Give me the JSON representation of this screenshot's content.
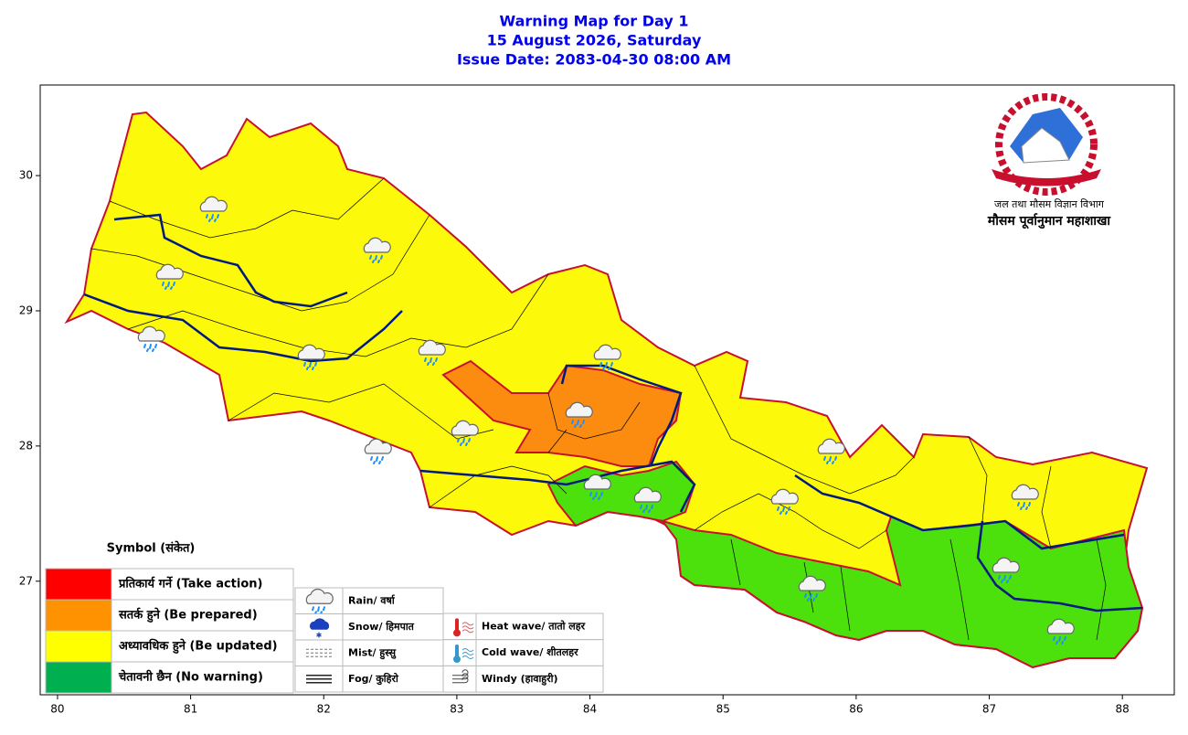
{
  "title": [
    "Warning Map for Day 1",
    "15 August 2026, Saturday",
    "Issue Date: 2083-04-30 08:00 AM"
  ],
  "map": {
    "xlim": [
      79.87,
      88.39
    ],
    "ylim": [
      26.16,
      30.67
    ],
    "xticks": [
      80,
      81,
      82,
      83,
      84,
      85,
      86,
      87,
      88
    ],
    "yticks": [
      27,
      28,
      29,
      30
    ]
  },
  "logo": {
    "line1": "जल तथा मौसम विज्ञान विभाग",
    "line2": "मौसम पूर्वानुमान महाशाखा"
  },
  "legend": {
    "title": "Symbol (संकेत)",
    "levels": [
      {
        "label": "प्रतिकार्य गर्ने (Take action)",
        "color": "#ff0000"
      },
      {
        "label": "सतर्क हुने (Be prepared)",
        "color": "#ff9200"
      },
      {
        "label": "अध्यावधिक हुने (Be updated)",
        "color": "#ffff00"
      },
      {
        "label": "चेतावनी छैन (No warning)",
        "color": "#00b050"
      }
    ]
  },
  "symbols": [
    "Rain/ वर्षा",
    "Snow/ हिमपात",
    "Mist/ हुस्सु",
    "Fog/ कुहिरो",
    "Heat wave/ तातो लहर",
    "Cold wave/ शीतलहर",
    "Windy (हावाहुरी)"
  ]
}
